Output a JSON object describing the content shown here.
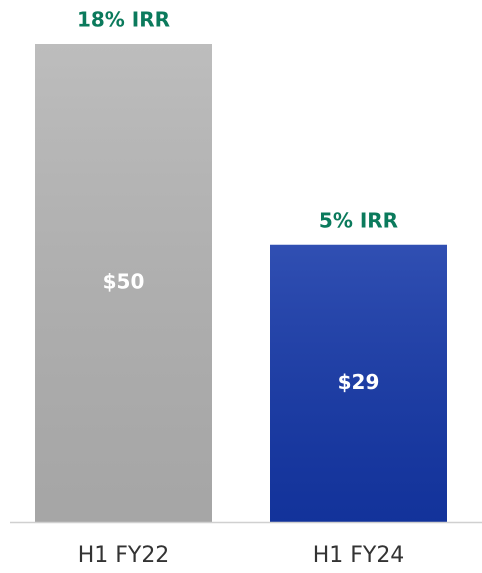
{
  "chart_data": {
    "type": "bar",
    "categories": [
      "H1 FY22",
      "H1 FY24"
    ],
    "values": [
      50,
      29
    ],
    "value_labels": [
      "$50",
      "$29"
    ],
    "annotations": [
      "18% IRR",
      "5% IRR"
    ],
    "colors": [
      "#b4b4b4",
      "#1437a8"
    ]
  }
}
